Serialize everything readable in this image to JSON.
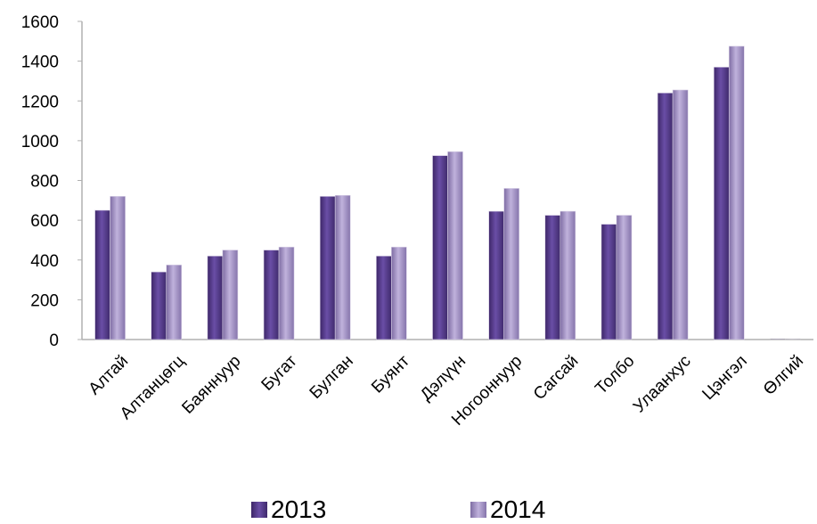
{
  "chart_data": {
    "type": "bar",
    "categories": [
      "Алтай",
      "Алтанцөгц",
      "Баяннуур",
      "Бугат",
      "Булган",
      "Буянт",
      "Дэлүүн",
      "Ногооннуур",
      "Сагсай",
      "Толбо",
      "Улаанхус",
      "Цэнгэл",
      "Өлгий"
    ],
    "series": [
      {
        "name": "2013",
        "values": [
          650,
          340,
          420,
          450,
          720,
          420,
          925,
          645,
          625,
          580,
          1240,
          1370,
          0
        ],
        "color": "#5b3f93"
      },
      {
        "name": "2014",
        "values": [
          720,
          375,
          450,
          465,
          725,
          465,
          945,
          760,
          645,
          625,
          1255,
          1475,
          0
        ],
        "color": "#a08fc2"
      }
    ],
    "y_ticks": [
      "0",
      "200",
      "400",
      "600",
      "800",
      "1000",
      "1200",
      "1400",
      "1600"
    ],
    "ylim": [
      0,
      1600
    ],
    "legend_position": "bottom",
    "grid": false
  }
}
